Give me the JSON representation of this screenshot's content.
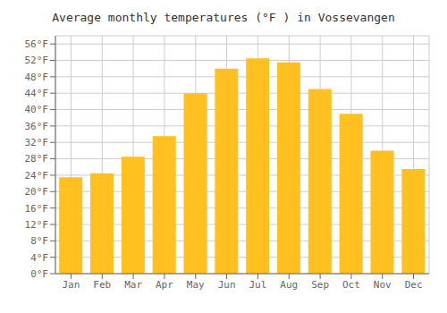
{
  "chart_data": {
    "type": "bar",
    "title": "Average monthly temperatures (°F ) in Vossevangen",
    "categories": [
      "Jan",
      "Feb",
      "Mar",
      "Apr",
      "May",
      "Jun",
      "Jul",
      "Aug",
      "Sep",
      "Oct",
      "Nov",
      "Dec"
    ],
    "values": [
      23.5,
      24.5,
      28.5,
      33.5,
      44.0,
      50.0,
      52.5,
      51.5,
      45.0,
      39.0,
      30.0,
      25.5
    ],
    "color": "#FFC020",
    "ylim": [
      0,
      58
    ],
    "yticks": [
      {
        "value": 0,
        "label": "0°F"
      },
      {
        "value": 4,
        "label": "4°F"
      },
      {
        "value": 8,
        "label": "8°F"
      },
      {
        "value": 12,
        "label": "12°F"
      },
      {
        "value": 16,
        "label": "16°F"
      },
      {
        "value": 20,
        "label": "20°F"
      },
      {
        "value": 24,
        "label": "24°F"
      },
      {
        "value": 28,
        "label": "28°F"
      },
      {
        "value": 32,
        "label": "32°F"
      },
      {
        "value": 36,
        "label": "36°F"
      },
      {
        "value": 40,
        "label": "40°F"
      },
      {
        "value": 44,
        "label": "44°F"
      },
      {
        "value": 48,
        "label": "48°F"
      },
      {
        "value": 52,
        "label": "52°F"
      },
      {
        "value": 56,
        "label": "56°F"
      }
    ],
    "grid": true
  }
}
